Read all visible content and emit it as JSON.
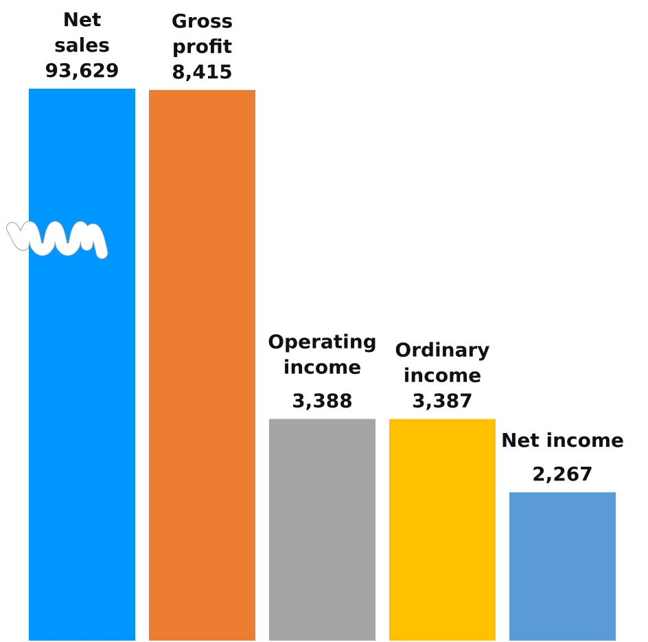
{
  "chart_data": {
    "type": "bar",
    "categories": [
      "Net sales",
      "Gross profit",
      "Operating income",
      "Ordinary income",
      "Net income"
    ],
    "values": [
      93629,
      8415,
      3388,
      3387,
      2267
    ],
    "value_labels": [
      "93,629",
      "8,415",
      "3,388",
      "3,387",
      "2,267"
    ],
    "category_labels": [
      [
        "Net",
        "sales"
      ],
      [
        "Gross",
        "profit"
      ],
      [
        "Operating",
        "income"
      ],
      [
        "Ordinary",
        "income"
      ],
      [
        "Net income"
      ]
    ],
    "colors": [
      "#0096FF",
      "#ED7D31",
      "#A5A5A5",
      "#FFC000",
      "#5B9BD5"
    ],
    "axis_break": {
      "series_index": 0,
      "marker": "wavy-break-icon"
    },
    "grid": false,
    "legend": "none"
  }
}
